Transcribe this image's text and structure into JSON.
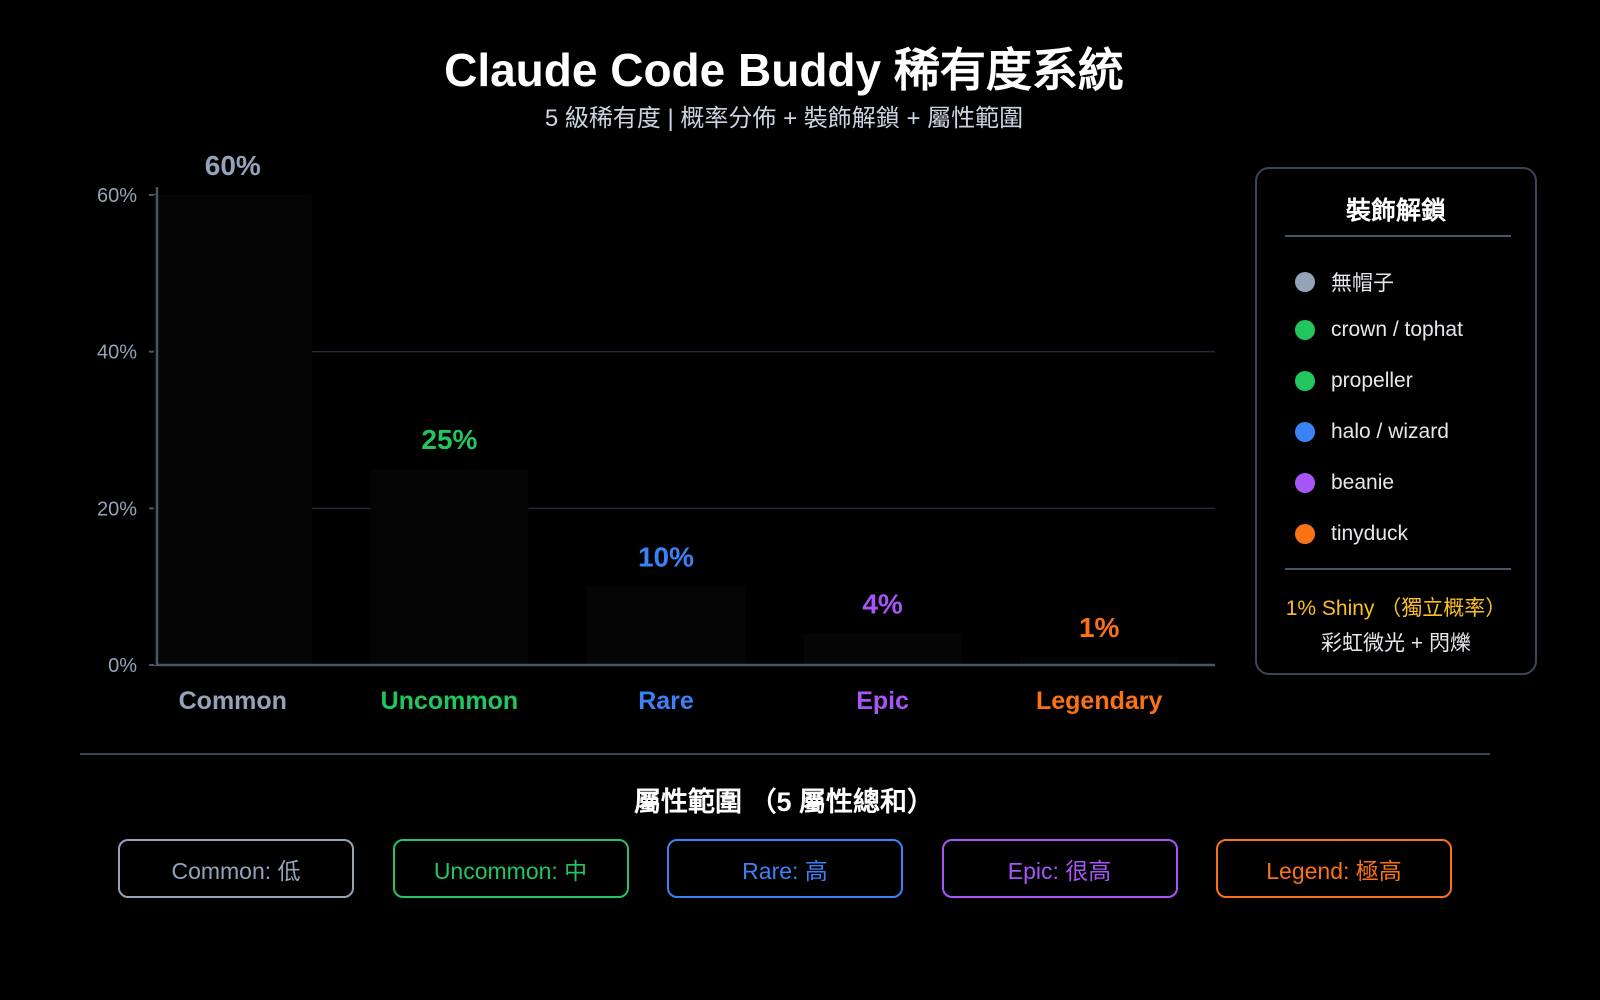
{
  "header": {
    "title": "Claude Code Buddy 稀有度系統",
    "subtitle": "5 級稀有度 | 概率分佈 + 裝飾解鎖 + 屬性範圍"
  },
  "chart_data": {
    "type": "bar",
    "categories": [
      "Common",
      "Uncommon",
      "Rare",
      "Epic",
      "Legendary"
    ],
    "values": [
      60,
      25,
      10,
      4,
      1
    ],
    "value_labels": [
      "60%",
      "25%",
      "10%",
      "4%",
      "1%"
    ],
    "colors": [
      "#94a3b8",
      "#22c55e",
      "#3b82f6",
      "#a855f7",
      "#f97316"
    ],
    "bar_fill": "#050505",
    "ylim": [
      0,
      60
    ],
    "yticks": [
      {
        "v": 0,
        "label": "0%"
      },
      {
        "v": 20,
        "label": "20%"
      },
      {
        "v": 40,
        "label": "40%"
      },
      {
        "v": 60,
        "label": "60%"
      }
    ],
    "grid": true,
    "xlabel": "",
    "ylabel": ""
  },
  "legend": {
    "title": "裝飾解鎖",
    "items": [
      {
        "label": "無帽子",
        "color": "#94a3b8"
      },
      {
        "label": "crown / tophat",
        "color": "#22c55e"
      },
      {
        "label": "propeller",
        "color": "#22c55e"
      },
      {
        "label": "halo / wizard",
        "color": "#3b82f6"
      },
      {
        "label": "beanie",
        "color": "#a855f7"
      },
      {
        "label": "tinyduck",
        "color": "#f97316"
      }
    ],
    "shiny": "1% Shiny （獨立概率）",
    "shiny_effect": "彩虹微光 + 閃爍"
  },
  "stats": {
    "title": "屬性範圍 （5 屬性總和）",
    "boxes": [
      {
        "label": "Common: 低",
        "color": "#94a3b8"
      },
      {
        "label": "Uncommon: 中",
        "color": "#22c55e"
      },
      {
        "label": "Rare: 高",
        "color": "#3b82f6"
      },
      {
        "label": "Epic: 很高",
        "color": "#a855f7"
      },
      {
        "label": "Legend: 極高",
        "color": "#f97316"
      }
    ]
  }
}
